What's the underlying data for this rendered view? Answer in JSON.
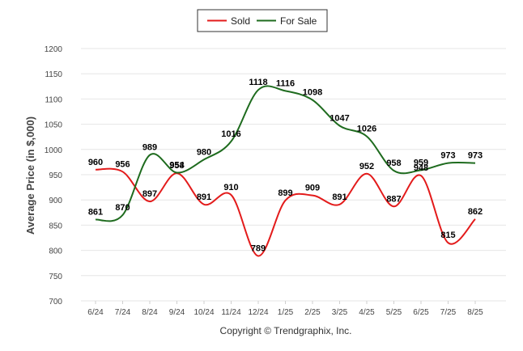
{
  "footer": "Copyright © Trendgraphix, Inc.",
  "chart_data": {
    "type": "line",
    "ylabel": "Average Price (in $,000)",
    "xlabel": "",
    "ylim": [
      700,
      1200
    ],
    "yticks": [
      700,
      750,
      800,
      850,
      900,
      950,
      1000,
      1050,
      1100,
      1150,
      1200
    ],
    "grid": true,
    "legend_position": "top-center",
    "categories": [
      "6/24",
      "7/24",
      "8/24",
      "9/24",
      "10/24",
      "11/24",
      "12/24",
      "1/25",
      "2/25",
      "3/25",
      "4/25",
      "5/25",
      "6/25",
      "7/25",
      "8/25"
    ],
    "series": [
      {
        "name": "Sold",
        "color": "#e31b1b",
        "values": [
          960,
          956,
          897,
          953,
          891,
          910,
          789,
          899,
          909,
          891,
          952,
          887,
          948,
          815,
          862
        ]
      },
      {
        "name": "For Sale",
        "color": "#1e6b1e",
        "values": [
          861,
          870,
          989,
          954,
          980,
          1016,
          1118,
          1116,
          1098,
          1047,
          1026,
          958,
          959,
          973,
          973
        ]
      }
    ]
  }
}
